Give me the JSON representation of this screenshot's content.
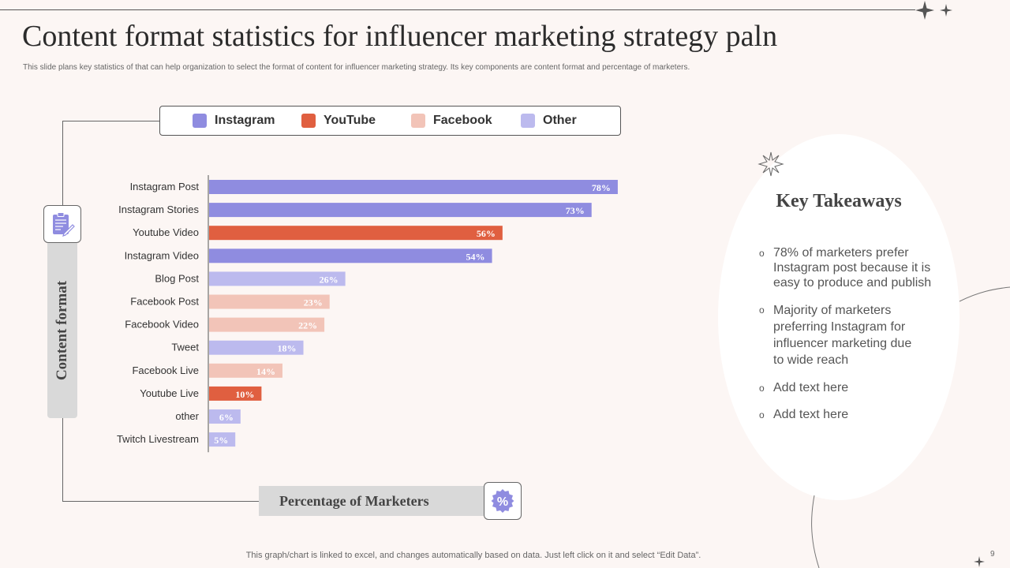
{
  "slide": {
    "title": "Content format statistics for influencer marketing strategy paln",
    "subtitle": "This slide plans key statistics of that can help organization to select the format of content for influencer marketing strategy. Its key components are content format and percentage of marketers.",
    "footer": "This graph/chart is linked to excel,  and changes automatically based on data. Just left click on it and select “Edit Data”.",
    "page_number": "9"
  },
  "legend": [
    {
      "label": "Instagram",
      "color": "#8f8ce0"
    },
    {
      "label": "YouTube",
      "color": "#e05f40"
    },
    {
      "label": "Facebook",
      "color": "#f2c4b8"
    },
    {
      "label": "Other",
      "color": "#bcbaee"
    }
  ],
  "chart_data": {
    "type": "bar",
    "orientation": "horizontal",
    "title": "",
    "xlabel": "Percentage of Marketers",
    "ylabel": "Content format",
    "xlim": [
      0,
      100
    ],
    "categories": [
      "Instagram Post",
      "Instagram Stories",
      "Youtube Video",
      "Instagram Video",
      "Blog Post",
      "Facebook Post",
      "Facebook Video",
      "Tweet",
      "Facebook Live",
      "Youtube Live",
      "other",
      "Twitch Livestream"
    ],
    "values": [
      78,
      73,
      56,
      54,
      26,
      23,
      22,
      18,
      14,
      10,
      6,
      5
    ],
    "value_labels": [
      "78%",
      "73%",
      "56%",
      "54%",
      "26%",
      "23%",
      "22%",
      "18%",
      "14%",
      "10%",
      "6%",
      "5%"
    ],
    "groups": [
      "Instagram",
      "Instagram",
      "YouTube",
      "Instagram",
      "Other",
      "Facebook",
      "Facebook",
      "Other",
      "Facebook",
      "YouTube",
      "Other",
      "Other"
    ],
    "grid": false
  },
  "takeaways": {
    "title": "Key Takeaways",
    "bullets": [
      [
        "78% of marketers prefer",
        "Instagram post because it is",
        "easy to produce and publish"
      ],
      [
        "Majority of marketers",
        "preferring Instagram for",
        "influencer marketing due",
        "to wide reach"
      ],
      [
        "Add text here"
      ],
      [
        "Add text here"
      ]
    ]
  },
  "icons": {
    "content": "clipboard-icon",
    "percent": "percent-badge-icon",
    "sparkle": "sparkle-icon",
    "starburst": "starburst-icon"
  }
}
